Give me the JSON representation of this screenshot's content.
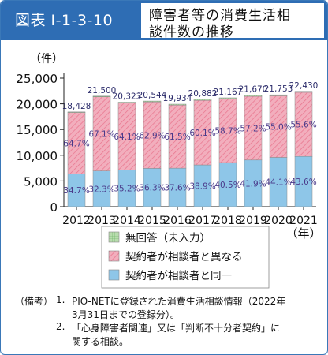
{
  "header": {
    "label": "図表 I-1-3-10",
    "title_line1": "障害者等の消費生活相",
    "title_line2": "談件数の推移"
  },
  "colors": {
    "header_bg": "#2e6db4",
    "same": "#8ec6e8",
    "different": "#f2aebd",
    "different_hatch": "#e8738c",
    "no_answer": "#b8dcae",
    "no_answer_grid": "#5fae5a"
  },
  "chart_data": {
    "type": "bar",
    "stacked": true,
    "y_unit": "（件）",
    "x_unit": "（年）",
    "ylim": [
      0,
      25000
    ],
    "yticks": [
      0,
      5000,
      10000,
      15000,
      20000,
      25000
    ],
    "ytick_labels": [
      "0",
      "5,000",
      "10,000",
      "15,000",
      "20,000",
      "25,000"
    ],
    "categories": [
      "2012",
      "2013",
      "2014",
      "2015",
      "2016",
      "2017",
      "2018",
      "2019",
      "2020",
      "2021"
    ],
    "totals": [
      18428,
      21500,
      20323,
      20544,
      19934,
      20882,
      21167,
      21670,
      21753,
      22430
    ],
    "total_labels": [
      "18,428",
      "21,500",
      "20,323",
      "20,544",
      "19,934",
      "20,882",
      "21,167",
      "21,670",
      "21,753",
      "22,430"
    ],
    "series": [
      {
        "name": "契約者が相談者と同一",
        "percents": [
          34.7,
          32.3,
          35.2,
          36.3,
          37.6,
          38.9,
          40.5,
          41.9,
          44.1,
          43.6
        ],
        "labels": [
          "34.7%",
          "32.3%",
          "35.2%",
          "36.3%",
          "37.6%",
          "38.9%",
          "40.5%",
          "41.9%",
          "44.1%",
          "43.6%"
        ]
      },
      {
        "name": "契約者が相談者と異なる",
        "percents": [
          64.7,
          67.1,
          64.1,
          62.9,
          61.5,
          60.1,
          58.7,
          57.2,
          55.0,
          55.6
        ],
        "labels": [
          "64.7%",
          "67.1%",
          "64.1%",
          "62.9%",
          "61.5%",
          "60.1%",
          "58.7%",
          "57.2%",
          "55.0%",
          "55.6%"
        ]
      },
      {
        "name": "無回答（未入力）",
        "percents": [
          0.6,
          0.6,
          0.7,
          0.8,
          0.9,
          1.0,
          0.8,
          0.9,
          0.9,
          0.8
        ],
        "labels": []
      }
    ],
    "legend": [
      "無回答（未入力）",
      "契約者が相談者と異なる",
      "契約者が相談者と同一"
    ],
    "legend_position": "bottom-center"
  },
  "notes": {
    "heading": "（備考）",
    "n1_num": "1.",
    "n1_line1": "PIO-NETに登録された消費生活相談情報（2022年",
    "n1_line2": "3月31日までの登録分）。",
    "n2_num": "2.",
    "n2_line1": "「心身障害者関連」又は「判断不十分者契約」に",
    "n2_line2": "関する相談。"
  }
}
